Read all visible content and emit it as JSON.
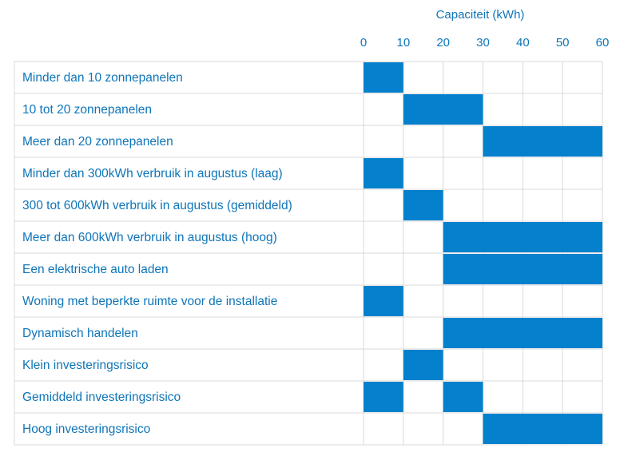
{
  "colors": {
    "accent": "#0580cc",
    "text": "#0e75b8",
    "grid": "#d9d9d9",
    "background": "#ffffff"
  },
  "chart_data": {
    "type": "table",
    "title": "",
    "xlabel": "Capaciteit (kWh)",
    "xlim": [
      0,
      60
    ],
    "ticks": [
      0,
      10,
      20,
      30,
      40,
      50,
      60
    ],
    "bins": [
      [
        0,
        10
      ],
      [
        10,
        20
      ],
      [
        20,
        30
      ],
      [
        30,
        40
      ],
      [
        40,
        50
      ],
      [
        50,
        60
      ]
    ],
    "grid": true,
    "rows": [
      {
        "label": "Minder dan 10 zonnepanelen",
        "range": [
          0,
          10
        ]
      },
      {
        "label": "10 tot 20 zonnepanelen",
        "range": [
          10,
          30
        ]
      },
      {
        "label": "Meer dan 20 zonnepanelen",
        "range": [
          30,
          60
        ]
      },
      {
        "label": "Minder dan 300kWh verbruik in augustus (laag)",
        "range": [
          0,
          10
        ]
      },
      {
        "label": "300 tot 600kWh verbruik in augustus (gemiddeld)",
        "range": [
          10,
          20
        ]
      },
      {
        "label": "Meer dan 600kWh verbruik in augustus (hoog)",
        "range": [
          20,
          60
        ]
      },
      {
        "label": "Een elektrische auto laden",
        "range": [
          20,
          60
        ]
      },
      {
        "label": "Woning met beperkte ruimte voor de installatie",
        "range": [
          0,
          10
        ]
      },
      {
        "label": "Dynamisch handelen",
        "range": [
          20,
          60
        ]
      },
      {
        "label": "Klein investeringsrisico",
        "range": [
          10,
          20
        ]
      },
      {
        "label": "Gemiddeld investeringsrisico",
        "range": [
          [
            0,
            10
          ],
          [
            20,
            30
          ]
        ]
      },
      {
        "label": "Hoog investeringsrisico",
        "range": [
          30,
          60
        ]
      }
    ]
  }
}
